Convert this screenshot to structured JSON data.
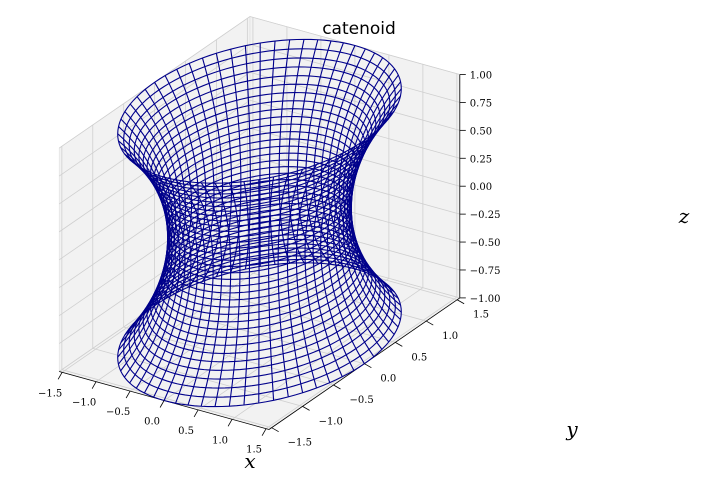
{
  "chart_data": {
    "type": "wireframe",
    "title": "catenoid",
    "surface": "catenoid: x = cosh(v)·cos(u), y = cosh(v)·sin(u), z = v",
    "u_range": [
      0,
      6.283
    ],
    "v_range": [
      -1.0,
      1.0
    ],
    "rings": 35,
    "meridians": 60,
    "series": [
      {
        "color": "#00008b"
      }
    ],
    "xlabel": "x",
    "ylabel": "y",
    "zlabel": "z",
    "xlim": [
      -1.543,
      1.543
    ],
    "ylim": [
      -1.543,
      1.543
    ],
    "zlim": [
      -1.0,
      1.0
    ],
    "x_ticks": [
      "−1.5",
      "−1.0",
      "−0.5",
      "0.0",
      "0.5",
      "1.0",
      "1.5"
    ],
    "y_ticks": [
      "−1.5",
      "−1.0",
      "−0.5",
      "0.0",
      "0.5",
      "1.0",
      "1.5"
    ],
    "z_ticks": [
      "−1.00",
      "−0.75",
      "−0.50",
      "−0.25",
      "0.00",
      "0.25",
      "0.50",
      "0.75",
      "1.00"
    ],
    "pane_color": "#f2f2f2",
    "grid": true
  }
}
